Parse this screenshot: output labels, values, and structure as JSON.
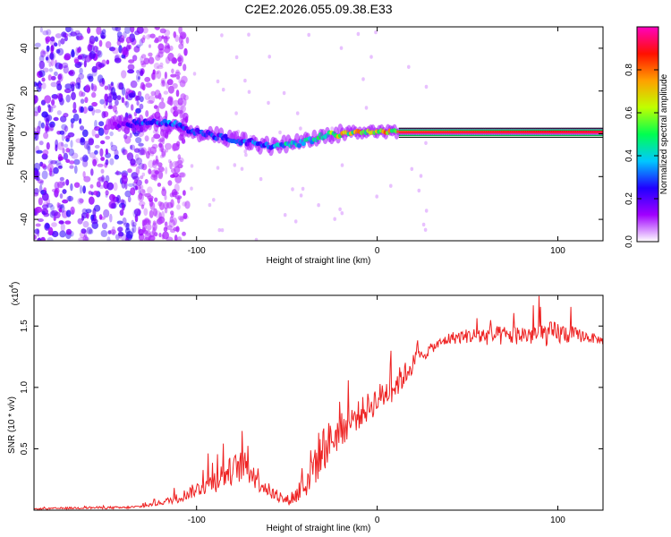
{
  "title": "C2E2.2026.055.09.38.E33",
  "chart_data": [
    {
      "type": "heatmap",
      "name": "spectrogram",
      "xlabel": "Height of straight line (km)",
      "ylabel": "Frequency (Hz)",
      "xlim": [
        -190,
        125
      ],
      "ylim": [
        -50,
        50
      ],
      "xticks": [
        -100,
        0,
        100
      ],
      "xtick_labels": [
        "-100",
        "0",
        "100"
      ],
      "yticks": [
        -40,
        -20,
        0,
        20,
        40
      ],
      "ytick_labels": [
        "-40",
        "-20",
        "0",
        "20",
        "40"
      ],
      "colorbar": {
        "label": "Normalized spectral amplitude",
        "range": [
          0,
          1
        ],
        "ticks": [
          0.0,
          0.2,
          0.4,
          0.6,
          0.8
        ],
        "tick_labels": [
          "0.0",
          "0.2",
          "0.4",
          "0.6",
          "0.8"
        ],
        "colors": [
          "#ffffff",
          "#a000ff",
          "#2000ff",
          "#00c8ff",
          "#00ff50",
          "#c0ff00",
          "#ffa000",
          "#ff1000",
          "#ff00c0"
        ]
      },
      "ridge": {
        "x": [
          -145,
          -130,
          -120,
          -110,
          -100,
          -90,
          -80,
          -70,
          -60,
          -50,
          -40,
          -30,
          -20,
          -10,
          0,
          10,
          125
        ],
        "freq": [
          4,
          5,
          5,
          4,
          1,
          -1,
          -3,
          -4,
          -6,
          -5,
          -4,
          -1,
          0,
          1,
          1,
          1,
          1
        ],
        "amplitude": [
          0.15,
          0.3,
          0.35,
          0.35,
          0.3,
          0.3,
          0.3,
          0.32,
          0.35,
          0.45,
          0.4,
          0.55,
          0.7,
          0.75,
          0.75,
          0.8,
          0.9
        ]
      },
      "noise_region_x": [
        -190,
        -130
      ]
    },
    {
      "type": "line",
      "name": "snr",
      "xlabel": "Height of straight line (km)",
      "ylabel": "SNR (10 * v/v)",
      "multiplier": "(x10",
      "multiplier_exp": "4",
      "multiplier_close": ")",
      "xlim": [
        -190,
        125
      ],
      "ylim": [
        0,
        1.75
      ],
      "xticks": [
        -100,
        0,
        100
      ],
      "xtick_labels": [
        "-100",
        "0",
        "100"
      ],
      "yticks": [
        0.5,
        1.0,
        1.5
      ],
      "ytick_labels": [
        "0.5",
        "1.0",
        "1.5"
      ],
      "color": "#ee2222",
      "series": [
        {
          "name": "SNR",
          "x": [
            -190,
            -160,
            -140,
            -130,
            -120,
            -110,
            -100,
            -90,
            -80,
            -75,
            -70,
            -65,
            -60,
            -55,
            -50,
            -45,
            -40,
            -35,
            -30,
            -25,
            -20,
            -15,
            -10,
            -5,
            0,
            5,
            10,
            15,
            20,
            30,
            40,
            50,
            60,
            70,
            80,
            90,
            100,
            110,
            120,
            125
          ],
          "y": [
            0.01,
            0.02,
            0.02,
            0.03,
            0.06,
            0.1,
            0.17,
            0.24,
            0.33,
            0.36,
            0.32,
            0.24,
            0.16,
            0.1,
            0.08,
            0.12,
            0.22,
            0.38,
            0.5,
            0.58,
            0.65,
            0.72,
            0.78,
            0.84,
            0.9,
            0.96,
            1.02,
            1.1,
            1.2,
            1.32,
            1.4,
            1.42,
            1.42,
            1.42,
            1.43,
            1.43,
            1.44,
            1.43,
            1.4,
            1.38
          ],
          "noise": [
            0.005,
            0.01,
            0.01,
            0.01,
            0.02,
            0.04,
            0.06,
            0.1,
            0.12,
            0.13,
            0.12,
            0.1,
            0.06,
            0.04,
            0.04,
            0.08,
            0.14,
            0.2,
            0.2,
            0.16,
            0.14,
            0.12,
            0.12,
            0.12,
            0.12,
            0.12,
            0.12,
            0.1,
            0.08,
            0.04,
            0.05,
            0.06,
            0.08,
            0.08,
            0.08,
            0.1,
            0.1,
            0.06,
            0.04,
            0.03
          ]
        }
      ]
    }
  ]
}
